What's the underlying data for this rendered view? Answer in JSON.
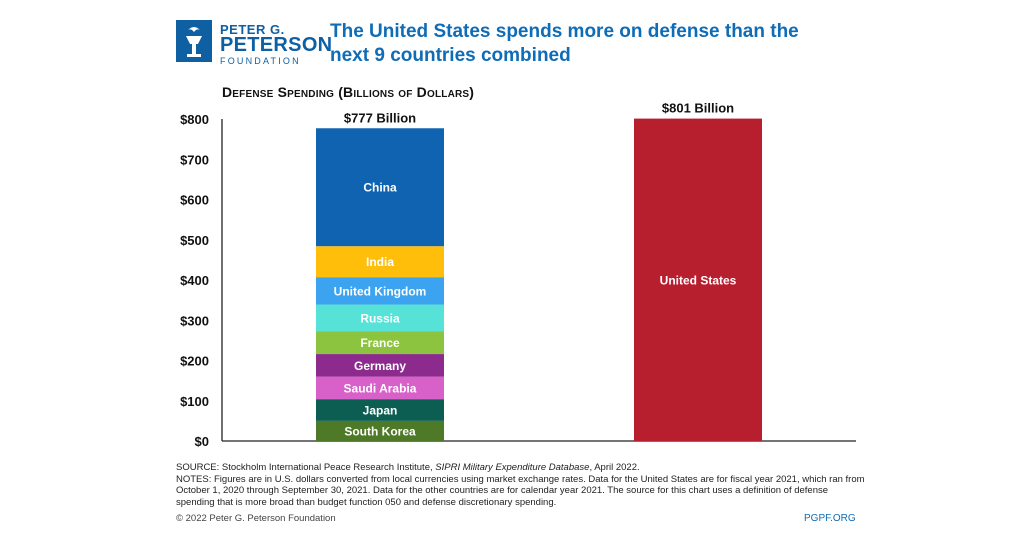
{
  "logo": {
    "line1": "PETER G.",
    "line2": "PETERSON",
    "line3": "FOUNDATION"
  },
  "title": "The United States spends more on defense than the next 9 countries combined",
  "title_lines": [
    "The United States spends more on defense than the",
    "next 9 countries combined"
  ],
  "colors": {
    "brand_blue": "#0f5fa3",
    "title_blue": "#0f6cb6"
  },
  "chart_data": {
    "type": "bar",
    "title": "Defense Spending (Billions of Dollars)",
    "ylim": [
      0,
      800
    ],
    "y_ticks": [
      "$0",
      "$100",
      "$200",
      "$300",
      "$400",
      "$500",
      "$600",
      "$700",
      "$800"
    ],
    "y_tick_values": [
      0,
      100,
      200,
      300,
      400,
      500,
      600,
      700,
      800
    ],
    "grid": false,
    "bars": [
      {
        "total_label": "$777 Billion",
        "total": 777,
        "stacked": true,
        "segments": [
          {
            "name": "South Korea",
            "value": 50,
            "color": "#4e7a27"
          },
          {
            "name": "Japan",
            "value": 54,
            "color": "#0c5e52"
          },
          {
            "name": "Saudi Arabia",
            "value": 56,
            "color": "#d860c9"
          },
          {
            "name": "Germany",
            "value": 56,
            "color": "#8c2a8e"
          },
          {
            "name": "France",
            "value": 57,
            "color": "#8dc43f"
          },
          {
            "name": "Russia",
            "value": 66,
            "color": "#56e2d6"
          },
          {
            "name": "United Kingdom",
            "value": 68,
            "color": "#3ba3f0"
          },
          {
            "name": "India",
            "value": 77,
            "color": "#ffbe0a"
          },
          {
            "name": "China",
            "value": 293,
            "color": "#0f63b0"
          }
        ]
      },
      {
        "total_label": "$801 Billion",
        "total": 801,
        "stacked": false,
        "segments": [
          {
            "name": "United States",
            "value": 801,
            "color": "#b71f2e"
          }
        ]
      }
    ]
  },
  "notes": {
    "source_prefix": "SOURCE: Stockholm International Peace Research Institute, ",
    "source_italic": "SIPRI Military Expenditure Database",
    "source_suffix": ", April 2022.",
    "notes_text": "NOTES: Figures are in U.S. dollars converted from local currencies using market exchange rates. Data for the United States are for fiscal year 2021, which ran from October 1, 2020 through September 30, 2021. Data for the other countries are for calendar year 2021. The source for this chart uses a definition of defense spending that is more broad than budget function 050 and defense discretionary spending."
  },
  "footer": {
    "copyright": "© 2022 Peter G. Peterson Foundation",
    "site": "PGPF.ORG"
  }
}
